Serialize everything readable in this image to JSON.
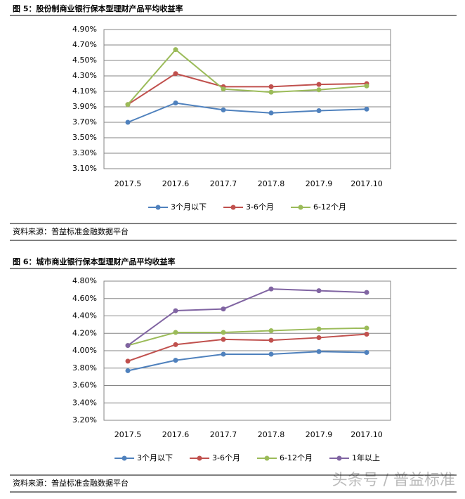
{
  "chart_data": [
    {
      "type": "line",
      "title": "图 5：股份制商业银行保本型理财产品平均收益率",
      "categories": [
        "2017.5",
        "2017.6",
        "2017.7",
        "2017.8",
        "2017.9",
        "2017.10"
      ],
      "series": [
        {
          "name": "3个月以下",
          "color": "#4f81bd",
          "values": [
            3.7,
            3.95,
            3.86,
            3.82,
            3.85,
            3.87
          ]
        },
        {
          "name": "3-6个月",
          "color": "#c0504d",
          "values": [
            3.93,
            4.33,
            4.16,
            4.16,
            4.19,
            4.2
          ]
        },
        {
          "name": "6-12个月",
          "color": "#9bbb59",
          "values": [
            3.93,
            4.64,
            4.13,
            4.09,
            4.12,
            4.17
          ]
        }
      ],
      "ylim": [
        3.1,
        4.9
      ],
      "yticks": [
        {
          "value": 3.1,
          "label": "3.10%"
        },
        {
          "value": 3.3,
          "label": "3.30%"
        },
        {
          "value": 3.5,
          "label": "3.50%"
        },
        {
          "value": 3.7,
          "label": "3.70%"
        },
        {
          "value": 3.9,
          "label": "3.90%"
        },
        {
          "value": 4.1,
          "label": "4.10%"
        },
        {
          "value": 4.3,
          "label": "4.30%"
        },
        {
          "value": 4.5,
          "label": "4.50%"
        },
        {
          "value": 4.7,
          "label": "4.70%"
        },
        {
          "value": 4.9,
          "label": "4.90%"
        }
      ],
      "grid": true,
      "legend": "bottom",
      "source": "资料来源：普益标准金融数据平台"
    },
    {
      "type": "line",
      "title": "图 6：城市商业银行保本型理财产品平均收益率",
      "categories": [
        "2017.5",
        "2017.6",
        "2017.7",
        "2017.8",
        "2017.9",
        "2017.10"
      ],
      "series": [
        {
          "name": "3个月以下",
          "color": "#4f81bd",
          "values": [
            3.77,
            3.89,
            3.96,
            3.96,
            3.99,
            3.98
          ]
        },
        {
          "name": "3-6个月",
          "color": "#c0504d",
          "values": [
            3.88,
            4.07,
            4.13,
            4.12,
            4.15,
            4.19
          ]
        },
        {
          "name": "6-12个月",
          "color": "#9bbb59",
          "values": [
            4.06,
            4.21,
            4.21,
            4.23,
            4.25,
            4.26
          ]
        },
        {
          "name": "1年以上",
          "color": "#8064a2",
          "values": [
            4.06,
            4.46,
            4.48,
            4.71,
            4.69,
            4.67
          ]
        }
      ],
      "ylim": [
        3.2,
        4.8
      ],
      "yticks": [
        {
          "value": 3.2,
          "label": "3.20%"
        },
        {
          "value": 3.4,
          "label": "3.40%"
        },
        {
          "value": 3.6,
          "label": "3.60%"
        },
        {
          "value": 3.8,
          "label": "3.80%"
        },
        {
          "value": 4.0,
          "label": "4.00%"
        },
        {
          "value": 4.2,
          "label": "4.20%"
        },
        {
          "value": 4.4,
          "label": "4.40%"
        },
        {
          "value": 4.6,
          "label": "4.60%"
        },
        {
          "value": 4.8,
          "label": "4.80%"
        }
      ],
      "grid": true,
      "legend": "bottom",
      "source": "资料来源：普益标准金融数据平台"
    }
  ],
  "watermark": "头条号 / 普益标准"
}
